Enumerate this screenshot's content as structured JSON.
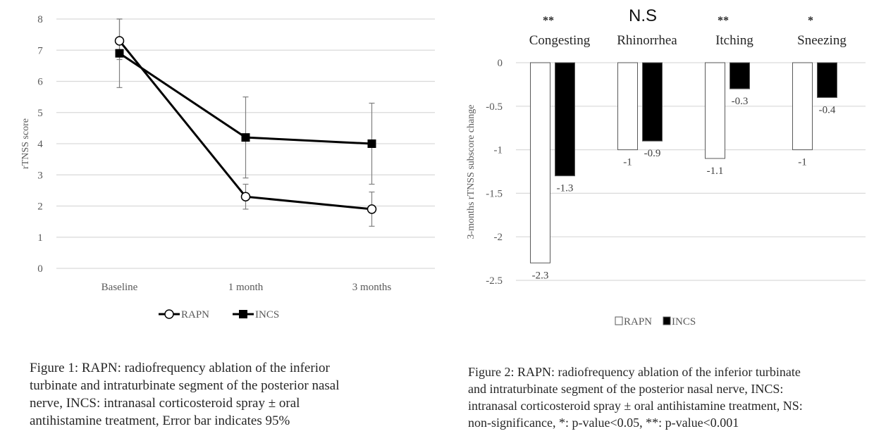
{
  "chart_data": [
    {
      "type": "line",
      "title": "",
      "xlabel": "",
      "ylabel": "rTNSS score",
      "categories": [
        "Baseline",
        "1 month",
        "3 months"
      ],
      "ylim": [
        0,
        8
      ],
      "yticks": [
        0,
        1,
        2,
        3,
        4,
        5,
        6,
        7,
        8
      ],
      "grid": true,
      "legend": "bottom",
      "series": [
        {
          "name": "RAPN",
          "marker": "open-circle",
          "values": [
            7.3,
            2.3,
            1.9
          ],
          "error_low": [
            6.7,
            1.9,
            1.35
          ],
          "error_high": [
            8.0,
            2.7,
            2.45
          ]
        },
        {
          "name": "INCS",
          "marker": "filled-square",
          "values": [
            6.9,
            4.2,
            4.0
          ],
          "error_low": [
            5.8,
            2.9,
            2.7
          ],
          "error_high": [
            8.0,
            5.5,
            5.3
          ]
        }
      ]
    },
    {
      "type": "bar",
      "title": "",
      "xlabel": "",
      "ylabel": "3-months rTNSS subscore change",
      "categories": [
        "Congesting",
        "Rhinorrhea",
        "Itching",
        "Sneezing"
      ],
      "significance": [
        "**",
        "N.S",
        "**",
        "*"
      ],
      "ylim": [
        -2.5,
        0
      ],
      "yticks": [
        0,
        -0.5,
        -1,
        -1.5,
        -2,
        -2.5
      ],
      "grid": true,
      "legend": "bottom",
      "series": [
        {
          "name": "RAPN",
          "fill": "#ffffff",
          "values": [
            -2.3,
            -1,
            -1.1,
            -1
          ],
          "labels": [
            "-2.3",
            "-1",
            "-1.1",
            "-1"
          ]
        },
        {
          "name": "INCS",
          "fill": "#000000",
          "values": [
            -1.3,
            -0.9,
            -0.3,
            -0.4
          ],
          "labels": [
            "-1.3",
            "-0.9",
            "-0.3",
            "-0.4"
          ]
        }
      ]
    }
  ],
  "captions": {
    "figure1": [
      "Figure 1: RAPN: radiofrequency ablation of the inferior",
      "turbinate and intraturbinate segment of the posterior nasal",
      "nerve, INCS: intranasal corticosteroid spray ± oral",
      "antihistamine treatment, Error bar indicates 95%"
    ],
    "figure2": [
      "Figure 2: RAPN: radiofrequency ablation of the inferior turbinate",
      "and intraturbinate segment of the posterior nasal nerve, INCS:",
      "intranasal corticosteroid spray ± oral antihistamine treatment, NS:",
      "non-significance, *: p-value<0.05, **: p-value<0.001"
    ]
  }
}
